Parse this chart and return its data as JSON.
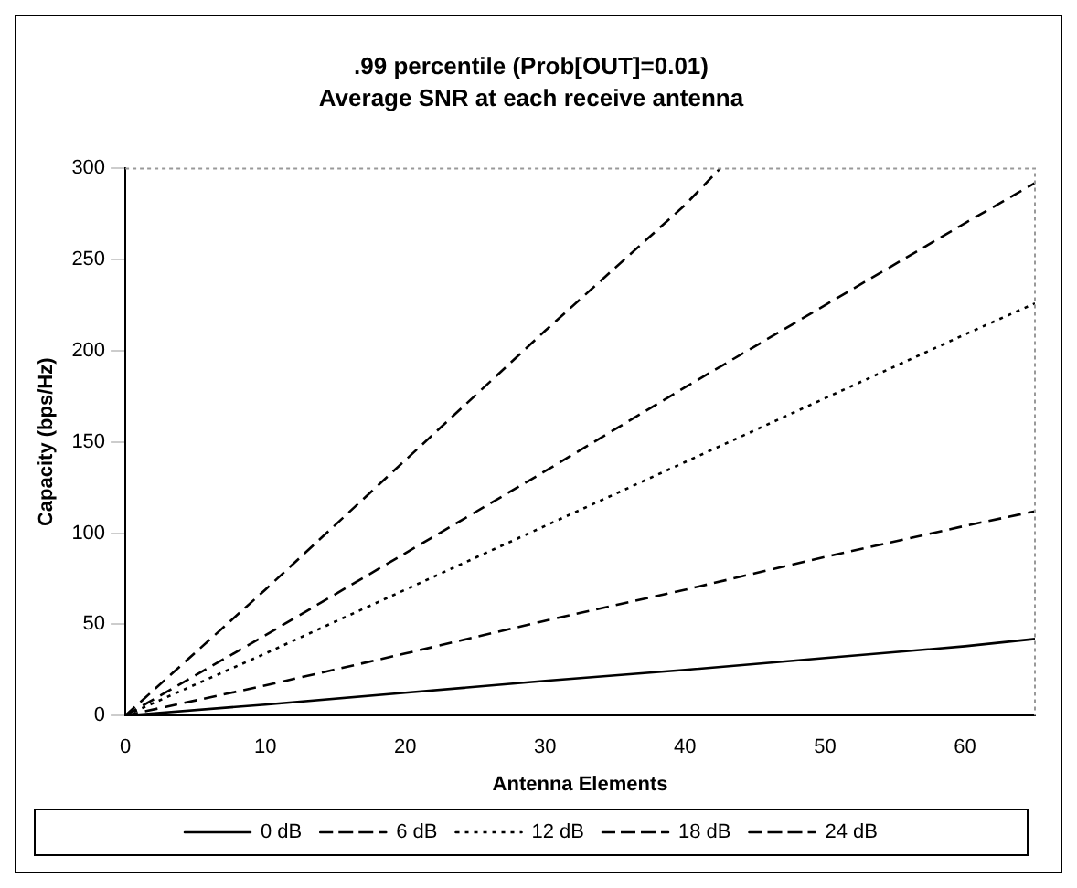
{
  "chart_data": {
    "type": "line",
    "title": ".99 percentile (Prob[OUT]=0.01)",
    "subtitle": "Average SNR at each receive antenna",
    "xlabel": "Antenna Elements",
    "ylabel": "Capacity (bps/Hz)",
    "xlim": [
      0,
      65
    ],
    "xticks": [
      0,
      10,
      20,
      30,
      40,
      50,
      60
    ],
    "ylim": [
      0,
      300
    ],
    "yticks": [
      0,
      50,
      100,
      150,
      200,
      250,
      300
    ],
    "grid": false,
    "legend": "bottom",
    "marker": "none",
    "series": [
      {
        "name": "0 dB",
        "color": "#000000",
        "line_style": "solid",
        "x": [
          0,
          10,
          20,
          30,
          40,
          50,
          60,
          65
        ],
        "values": [
          0,
          6,
          12.5,
          19,
          25,
          31.5,
          38,
          42
        ]
      },
      {
        "name": "6 dB",
        "color": "#000000",
        "line_style": "dashed",
        "x": [
          0,
          10,
          20,
          30,
          40,
          50,
          60,
          65
        ],
        "values": [
          0,
          16.5,
          34,
          52,
          69,
          87,
          104,
          112
        ]
      },
      {
        "name": "12 dB",
        "color": "#000000",
        "line_style": "dotted",
        "x": [
          0,
          10,
          20,
          30,
          40,
          50,
          60,
          65
        ],
        "values": [
          0,
          34,
          69,
          104,
          139,
          174,
          209,
          226
        ]
      },
      {
        "name": "18 dB",
        "color": "#000000",
        "line_style": "dashed",
        "x": [
          0,
          10,
          20,
          30,
          40,
          50,
          60,
          65
        ],
        "values": [
          0,
          44,
          89,
          134,
          180,
          225,
          270,
          292
        ]
      },
      {
        "name": "24 dB",
        "color": "#000000",
        "line_style": "dashed",
        "x": [
          0,
          10,
          20,
          30,
          40,
          42.5
        ],
        "values": [
          0,
          69,
          140,
          211,
          280,
          300
        ]
      }
    ]
  }
}
